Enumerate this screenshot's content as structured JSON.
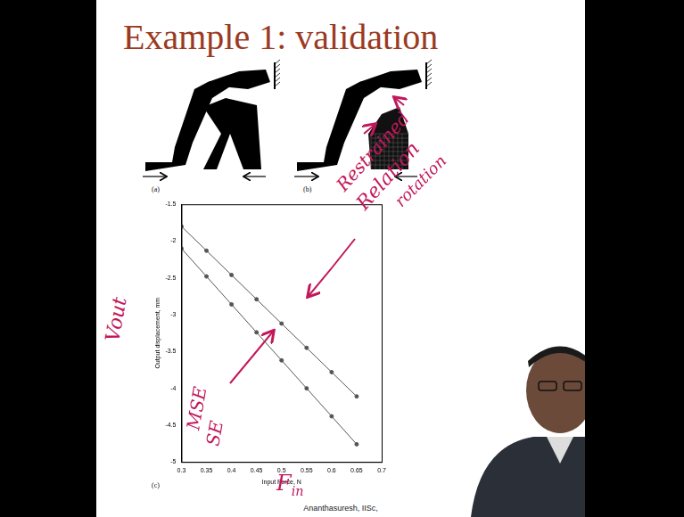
{
  "slide": {
    "title": "Example 1: validation",
    "footer": "Ananthasuresh, IISc,"
  },
  "panels": [
    "(a)",
    "(b)",
    "(c)"
  ],
  "chart_data": {
    "type": "line",
    "x_label": "Input Force, N",
    "y_label": "Output displacement, mm",
    "x": [
      0.3,
      0.35,
      0.4,
      0.45,
      0.5,
      0.55,
      0.6,
      0.65
    ],
    "series": [
      {
        "color": "#555555",
        "marker": "circle",
        "values": [
          -1.8,
          -2.13,
          -2.46,
          -2.79,
          -3.12,
          -3.45,
          -3.78,
          -4.11
        ]
      },
      {
        "color": "#555555",
        "marker": "circle",
        "values": [
          -2.1,
          -2.48,
          -2.86,
          -3.24,
          -3.62,
          -4.0,
          -4.38,
          -4.76
        ]
      }
    ],
    "xlim": [
      0.3,
      0.7
    ],
    "xticks": [
      0.3,
      0.35,
      0.4,
      0.45,
      0.5,
      0.55,
      0.6,
      0.65,
      0.7
    ],
    "ylim": [
      -5,
      -1.5
    ],
    "yticks": [
      -5,
      -4.5,
      -4,
      -3.5,
      -3,
      -2.5,
      -2,
      -1.5
    ],
    "grid": false
  },
  "annotations": {
    "upper_line": [
      "Restrained",
      "Relation",
      "rotation"
    ],
    "lower_line": [
      "MSE",
      "SE"
    ],
    "y_axis": "Vout",
    "x_axis": {
      "text": "F",
      "sub": "in"
    }
  }
}
